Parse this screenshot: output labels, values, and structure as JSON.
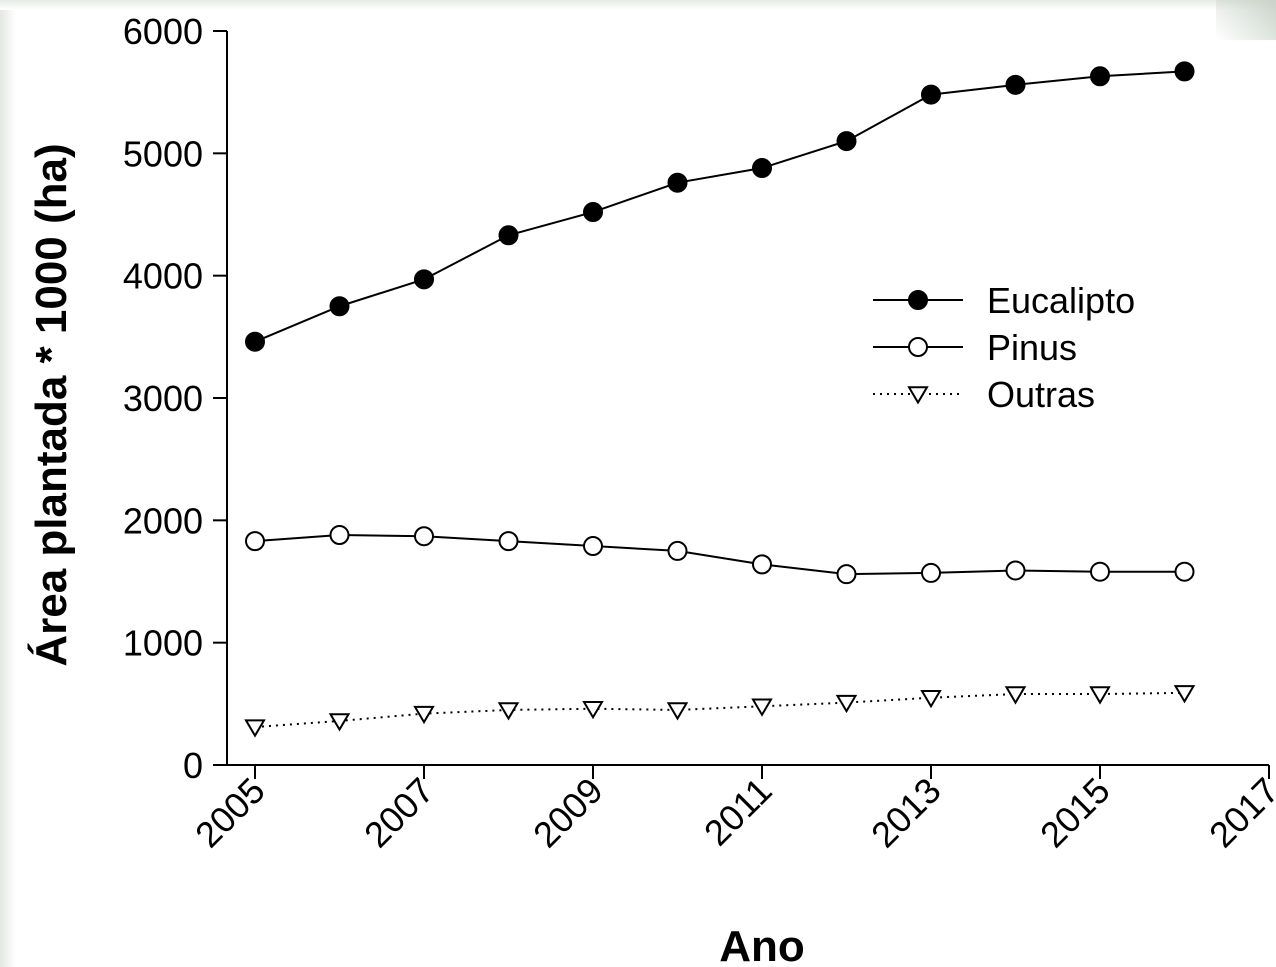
{
  "chart_data": {
    "type": "line",
    "title": "",
    "xlabel": "Ano",
    "ylabel": "Área plantada * 1000 (ha)",
    "xlim": [
      2005,
      2017
    ],
    "ylim": [
      0,
      6000
    ],
    "x_ticks": [
      "2005",
      "2007",
      "2009",
      "2011",
      "2013",
      "2015",
      "2017"
    ],
    "y_ticks": [
      "0",
      "1000",
      "2000",
      "3000",
      "4000",
      "5000",
      "6000"
    ],
    "grid": false,
    "legend_position": "right",
    "x": [
      2005,
      2006,
      2007,
      2008,
      2009,
      2010,
      2011,
      2012,
      2013,
      2014,
      2015,
      2016
    ],
    "series": [
      {
        "name": "Eucalipto",
        "marker": "filled-circle",
        "line_style": "solid",
        "color": "#000000",
        "values": [
          3460,
          3750,
          3970,
          4330,
          4520,
          4760,
          4880,
          5100,
          5480,
          5560,
          5630,
          5670
        ]
      },
      {
        "name": "Pinus",
        "marker": "open-circle",
        "line_style": "solid",
        "color": "#000000",
        "values": [
          1830,
          1880,
          1870,
          1830,
          1790,
          1750,
          1640,
          1560,
          1570,
          1590,
          1580,
          1580
        ]
      },
      {
        "name": "Outras",
        "marker": "open-triangle-down",
        "line_style": "dotted",
        "color": "#000000",
        "values": [
          310,
          360,
          420,
          450,
          460,
          450,
          480,
          510,
          550,
          580,
          580,
          590
        ]
      }
    ]
  }
}
